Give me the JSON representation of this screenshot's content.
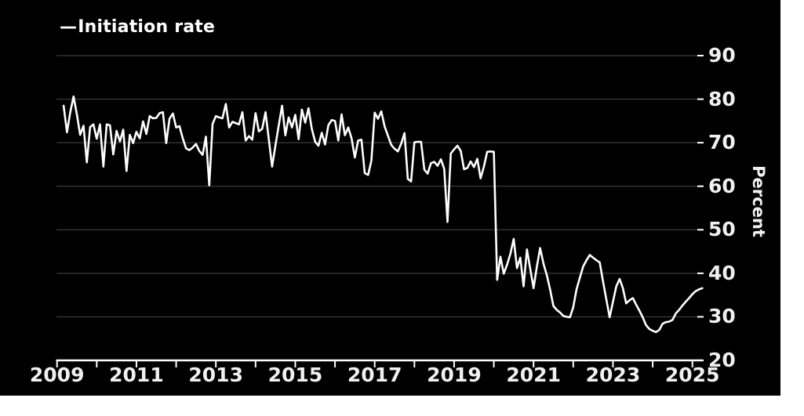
{
  "figure": {
    "background": "#000000",
    "page_background": "#ffffff"
  },
  "legend": {
    "marker": "—",
    "label": "Initiation rate"
  },
  "y_axis": {
    "title": "Percent",
    "ticks": [
      90,
      80,
      70,
      60,
      50,
      40,
      30,
      20
    ]
  },
  "x_axis": {
    "tick_years": [
      2009,
      2010,
      2011,
      2012,
      2013,
      2014,
      2015,
      2016,
      2017,
      2018,
      2019,
      2020,
      2021,
      2022,
      2023,
      2024,
      2025
    ],
    "label_years": [
      "2009",
      "2011",
      "2013",
      "2015",
      "2017",
      "2019",
      "2021",
      "2023",
      "2025"
    ]
  },
  "colors": {
    "line": "#ffffff",
    "grid": "#4a4a4a",
    "axis": "#ffffff",
    "text": "#f0f0f0",
    "background": "#000000"
  },
  "chart_data": {
    "type": "line",
    "title": "",
    "xlabel": "",
    "ylabel": "Percent",
    "legend_position": "top-left",
    "grid": "horizontal",
    "ylim": [
      20,
      90
    ],
    "xlim": [
      2009,
      2025.4
    ],
    "x_tick_years": [
      2009,
      2010,
      2011,
      2012,
      2013,
      2014,
      2015,
      2016,
      2017,
      2018,
      2019,
      2020,
      2021,
      2022,
      2023,
      2024,
      2025
    ],
    "x_label_years": [
      2009,
      2011,
      2013,
      2015,
      2017,
      2019,
      2021,
      2023,
      2025
    ],
    "series": [
      {
        "name": "Initiation rate",
        "frequency": "monthly",
        "start_year": 2009,
        "start_month": 3,
        "values": [
          78.5,
          72.4,
          77,
          80.6,
          76.5,
          71.8,
          73.9,
          65.5,
          73.6,
          74.2,
          70.9,
          74.2,
          64.5,
          74.2,
          74,
          67.3,
          72.7,
          70.3,
          73,
          63.5,
          71.8,
          69.9,
          72.5,
          71,
          74.9,
          72,
          76.1,
          75.6,
          75.7,
          76.8,
          77,
          69.9,
          75.5,
          76.7,
          73.5,
          73.8,
          71,
          68.7,
          68.3,
          68.9,
          69.7,
          68.1,
          67.2,
          71.4,
          60.2,
          74.3,
          76.1,
          75.8,
          75.6,
          78.9,
          73.5,
          74.8,
          74.5,
          74.2,
          77,
          70.5,
          71.5,
          70.7,
          76.8,
          72.6,
          73.2,
          77,
          70.8,
          64.5,
          69.3,
          74,
          78.5,
          71.7,
          75.8,
          73.5,
          76.4,
          70.8,
          77.6,
          74.6,
          77.9,
          73.2,
          70.2,
          69.3,
          72.3,
          69.6,
          74,
          75.2,
          75,
          70.5,
          76.5,
          71.7,
          73.5,
          71,
          66.6,
          70.5,
          70.7,
          63,
          62.6,
          65.9,
          76.9,
          75.5,
          77.2,
          73.7,
          71.6,
          69.5,
          68.6,
          68,
          69.8,
          72.2,
          61.7,
          61.1,
          70.1,
          70.2,
          70.2,
          63.8,
          62.9,
          65.3,
          65.6,
          64.7,
          66.2,
          64,
          51.8,
          67.5,
          68.5,
          69.3,
          68.1,
          63.9,
          64.2,
          65.7,
          64.4,
          66.3,
          61.8,
          64.5,
          67.9,
          68,
          67.9,
          38.5,
          43.8,
          39.9,
          42,
          44.5,
          47.9,
          41.2,
          43.6,
          37,
          45.5,
          41,
          36.6,
          41.5,
          45.8,
          42.2,
          39.6,
          36.3,
          32.5,
          31.6,
          31,
          30.2,
          30,
          29.9,
          32.2,
          36.3,
          39,
          41.6,
          43,
          44.2,
          43.6,
          43,
          42.5,
          38.1,
          34,
          29.9,
          33.5,
          37,
          38.7,
          36.6,
          33.1,
          33.8,
          34.3,
          32.8,
          31.4,
          29.9,
          28.1,
          27.2,
          26.8,
          26.5,
          27,
          28.4,
          28.8,
          28.9,
          29.3,
          30.8,
          31.6,
          32.6,
          33.5,
          34.3,
          35.2,
          35.9,
          36.3,
          36.6
        ]
      }
    ]
  }
}
